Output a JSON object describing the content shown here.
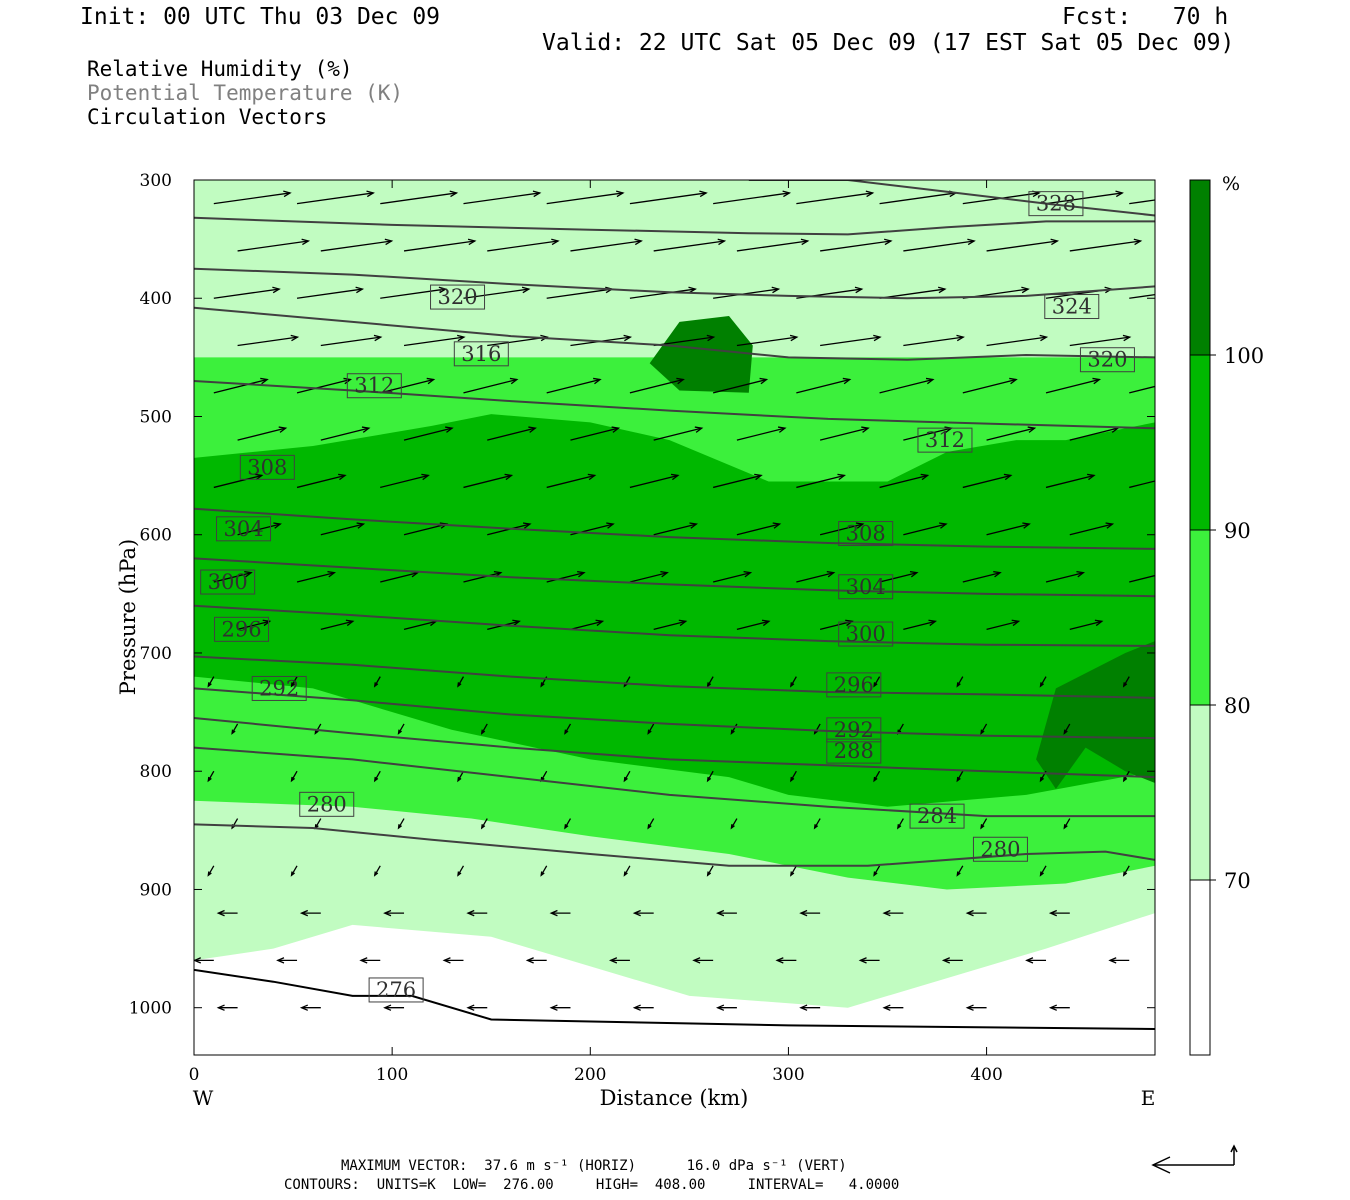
{
  "header": {
    "init": "Init: 00 UTC Thu 03 Dec 09",
    "fcst": "Fcst:   70 h",
    "valid": "Valid: 22 UTC Sat 05 Dec 09 (17 EST Sat 05 Dec 09)"
  },
  "legend_text": {
    "rh": "Relative Humidity (%)",
    "theta": "Potential Temperature (K)",
    "vectors": "Circulation Vectors"
  },
  "footer": {
    "max_vector": "MAXIMUM VECTOR:  37.6 m s⁻¹ (HORIZ)      16.0 dPa s⁻¹ (VERT)",
    "contours": "CONTOURS:  UNITS=K  LOW=  276.00     HIGH=  408.00     INTERVAL=   4.0000"
  },
  "colors": {
    "rh_70_80": "#c1fcc1",
    "rh_80_90": "#3cf03c",
    "rh_90_100": "#00b800",
    "rh_100": "#008000",
    "contour": "#404040"
  },
  "chart_data": {
    "type": "cross-section",
    "xlabel": "Distance (km)",
    "ylabel": "Pressure (hPa)",
    "xlim": [
      0,
      485
    ],
    "ylim": [
      1040,
      300
    ],
    "x_ticks": [
      0,
      100,
      200,
      300,
      400
    ],
    "y_ticks": [
      300,
      400,
      500,
      600,
      700,
      800,
      900,
      1000
    ],
    "x_ends": {
      "left": "W",
      "right": "E"
    },
    "colorbar": {
      "unit": "%",
      "levels": [
        70,
        80,
        90,
        100
      ]
    },
    "rh_regions": [
      {
        "level": 80,
        "points": [
          [
            0,
            300
          ],
          [
            485,
            300
          ],
          [
            485,
            920
          ],
          [
            430,
            950
          ],
          [
            330,
            1000
          ],
          [
            250,
            990
          ],
          [
            150,
            940
          ],
          [
            80,
            930
          ],
          [
            40,
            950
          ],
          [
            0,
            960
          ]
        ]
      },
      {
        "level": 90,
        "points": [
          [
            0,
            450
          ],
          [
            485,
            450
          ],
          [
            485,
            880
          ],
          [
            440,
            895
          ],
          [
            380,
            900
          ],
          [
            330,
            890
          ],
          [
            270,
            870
          ],
          [
            200,
            855
          ],
          [
            140,
            840
          ],
          [
            80,
            830
          ],
          [
            0,
            825
          ]
        ]
      },
      {
        "level": 100,
        "points": [
          [
            0,
            535
          ],
          [
            60,
            525
          ],
          [
            120,
            508
          ],
          [
            150,
            498
          ],
          [
            200,
            505
          ],
          [
            240,
            520
          ],
          [
            290,
            555
          ],
          [
            350,
            555
          ],
          [
            380,
            530
          ],
          [
            415,
            520
          ],
          [
            440,
            520
          ],
          [
            485,
            505
          ],
          [
            485,
            800
          ],
          [
            420,
            820
          ],
          [
            350,
            830
          ],
          [
            300,
            820
          ],
          [
            270,
            805
          ],
          [
            200,
            790
          ],
          [
            130,
            765
          ],
          [
            60,
            730
          ],
          [
            0,
            720
          ]
        ]
      },
      {
        "level": 110,
        "points": [
          [
            425,
            790
          ],
          [
            435,
            730
          ],
          [
            470,
            700
          ],
          [
            485,
            690
          ],
          [
            485,
            810
          ],
          [
            470,
            800
          ],
          [
            450,
            780
          ],
          [
            435,
            815
          ]
        ]
      },
      {
        "level": 110,
        "points": [
          [
            230,
            455
          ],
          [
            245,
            420
          ],
          [
            270,
            415
          ],
          [
            282,
            440
          ],
          [
            280,
            480
          ],
          [
            245,
            478
          ]
        ]
      }
    ],
    "theta_contours": [
      {
        "value": 276,
        "points": [
          [
            0,
            968
          ],
          [
            40,
            978
          ],
          [
            80,
            990
          ],
          [
            110,
            990
          ],
          [
            150,
            1010
          ],
          [
            300,
            1015
          ],
          [
            485,
            1018
          ]
        ]
      },
      {
        "value": 280,
        "points": [
          [
            0,
            845
          ],
          [
            60,
            848
          ],
          [
            120,
            858
          ],
          [
            200,
            870
          ],
          [
            270,
            880
          ],
          [
            340,
            880
          ],
          [
            420,
            870
          ],
          [
            460,
            868
          ],
          [
            485,
            875
          ]
        ]
      },
      {
        "value": 284,
        "points": [
          [
            0,
            780
          ],
          [
            80,
            790
          ],
          [
            160,
            805
          ],
          [
            240,
            820
          ],
          [
            320,
            830
          ],
          [
            400,
            838
          ],
          [
            485,
            838
          ]
        ]
      },
      {
        "value": 288,
        "points": [
          [
            0,
            755
          ],
          [
            80,
            768
          ],
          [
            160,
            780
          ],
          [
            240,
            790
          ],
          [
            320,
            795
          ],
          [
            400,
            800
          ],
          [
            485,
            805
          ]
        ]
      },
      {
        "value": 292,
        "points": [
          [
            0,
            730
          ],
          [
            80,
            740
          ],
          [
            160,
            752
          ],
          [
            240,
            760
          ],
          [
            320,
            766
          ],
          [
            400,
            770
          ],
          [
            485,
            772
          ]
        ]
      },
      {
        "value": 296,
        "points": [
          [
            0,
            703
          ],
          [
            80,
            710
          ],
          [
            160,
            720
          ],
          [
            240,
            728
          ],
          [
            320,
            733
          ],
          [
            400,
            735
          ],
          [
            485,
            738
          ]
        ]
      },
      {
        "value": 300,
        "points": [
          [
            0,
            660
          ],
          [
            80,
            668
          ],
          [
            160,
            677
          ],
          [
            240,
            685
          ],
          [
            320,
            690
          ],
          [
            400,
            693
          ],
          [
            485,
            694
          ]
        ]
      },
      {
        "value": 304,
        "points": [
          [
            0,
            620
          ],
          [
            80,
            628
          ],
          [
            160,
            636
          ],
          [
            240,
            642
          ],
          [
            320,
            647
          ],
          [
            400,
            650
          ],
          [
            485,
            652
          ]
        ]
      },
      {
        "value": 308,
        "points": [
          [
            0,
            578
          ],
          [
            80,
            587
          ],
          [
            160,
            595
          ],
          [
            240,
            602
          ],
          [
            320,
            607
          ],
          [
            400,
            610
          ],
          [
            485,
            612
          ]
        ]
      },
      {
        "value": 312,
        "points": [
          [
            0,
            470
          ],
          [
            80,
            478
          ],
          [
            160,
            487
          ],
          [
            240,
            495
          ],
          [
            320,
            502
          ],
          [
            400,
            506
          ],
          [
            485,
            510
          ]
        ]
      },
      {
        "value": 316,
        "points": [
          [
            0,
            408
          ],
          [
            80,
            420
          ],
          [
            160,
            432
          ],
          [
            240,
            440
          ],
          [
            300,
            450
          ],
          [
            360,
            452
          ],
          [
            420,
            448
          ],
          [
            485,
            450
          ]
        ]
      },
      {
        "value": 320,
        "points": [
          [
            0,
            375
          ],
          [
            80,
            380
          ],
          [
            160,
            388
          ],
          [
            240,
            395
          ],
          [
            300,
            398
          ],
          [
            360,
            400
          ],
          [
            420,
            398
          ],
          [
            485,
            390
          ]
        ]
      },
      {
        "value": 324,
        "points": [
          [
            0,
            332
          ],
          [
            100,
            338
          ],
          [
            200,
            342
          ],
          [
            280,
            345
          ],
          [
            330,
            346
          ],
          [
            380,
            340
          ],
          [
            430,
            335
          ],
          [
            485,
            335
          ]
        ]
      },
      {
        "value": 328,
        "points": [
          [
            280,
            300
          ],
          [
            330,
            300
          ],
          [
            380,
            310
          ],
          [
            430,
            320
          ],
          [
            485,
            330
          ]
        ]
      }
    ],
    "contour_labels": [
      {
        "text": "276",
        "x": 102,
        "y": 985
      },
      {
        "text": "280",
        "x": 67,
        "y": 828
      },
      {
        "text": "280",
        "x": 407,
        "y": 866
      },
      {
        "text": "284",
        "x": 375,
        "y": 838
      },
      {
        "text": "288",
        "x": 333,
        "y": 783
      },
      {
        "text": "292",
        "x": 43,
        "y": 730
      },
      {
        "text": "292",
        "x": 333,
        "y": 765
      },
      {
        "text": "296",
        "x": 24,
        "y": 680
      },
      {
        "text": "296",
        "x": 333,
        "y": 727
      },
      {
        "text": "300",
        "x": 17,
        "y": 640
      },
      {
        "text": "300",
        "x": 339,
        "y": 684
      },
      {
        "text": "304",
        "x": 25,
        "y": 595
      },
      {
        "text": "304",
        "x": 339,
        "y": 644
      },
      {
        "text": "308",
        "x": 37,
        "y": 543
      },
      {
        "text": "308",
        "x": 339,
        "y": 599
      },
      {
        "text": "312",
        "x": 91,
        "y": 474
      },
      {
        "text": "312",
        "x": 379,
        "y": 520
      },
      {
        "text": "316",
        "x": 145,
        "y": 447
      },
      {
        "text": "320",
        "x": 133,
        "y": 399
      },
      {
        "text": "320",
        "x": 461,
        "y": 452
      },
      {
        "text": "324",
        "x": 443,
        "y": 407
      },
      {
        "text": "328",
        "x": 435,
        "y": 320
      }
    ]
  }
}
